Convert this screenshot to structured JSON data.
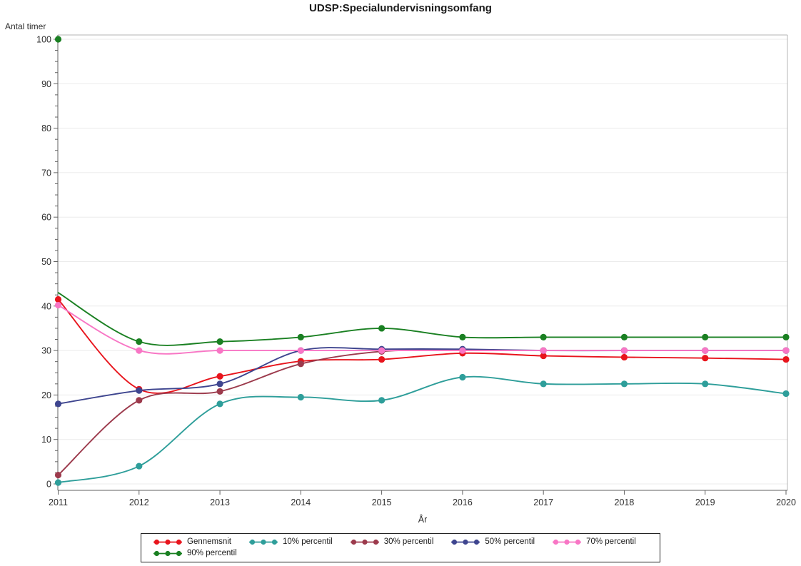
{
  "figure": {
    "title": "UDSP:Specialundervisningsomfang",
    "y_axis_title": "Antal timer",
    "x_axis_title": "År"
  },
  "chart_data": {
    "type": "line",
    "title": "UDSP:Specialundervisningsomfang",
    "xlabel": "År",
    "ylabel": "Antal timer",
    "x_categories": [
      "2011",
      "2012",
      "2013",
      "2014",
      "2015",
      "2016",
      "2017",
      "2018",
      "2019",
      "2020"
    ],
    "ylim": [
      0,
      100
    ],
    "yticks": [
      0,
      10,
      20,
      30,
      40,
      50,
      60,
      70,
      80,
      90,
      100
    ],
    "y_minor_tick_interval": 2.5,
    "grid": "horizontal",
    "legend_position": "bottom",
    "legend_rows": [
      5,
      1
    ],
    "series": [
      {
        "name": "Gennemsnit",
        "color": "#e8141c",
        "values": [
          41.5,
          21.3,
          24.2,
          27.6,
          28,
          29.4,
          28.8,
          28.5,
          28.3,
          28
        ]
      },
      {
        "name": "10% percentil",
        "color": "#2e9e9a",
        "values": [
          0.3,
          4,
          18,
          19.5,
          18.8,
          24,
          22.5,
          22.5,
          22.5,
          20.3
        ]
      },
      {
        "name": "30% percentil",
        "color": "#9c3a4c",
        "values": [
          2,
          18.8,
          20.8,
          27,
          29.8,
          30,
          30,
          30,
          30,
          30
        ]
      },
      {
        "name": "50% percentil",
        "color": "#3e458f",
        "values": [
          18,
          21,
          22.5,
          30,
          30.3,
          30.3,
          30,
          30,
          30,
          30
        ]
      },
      {
        "name": "70% percentil",
        "color": "#f876c5",
        "values": [
          40.2,
          30,
          30,
          30,
          30,
          30,
          30,
          30,
          30,
          30
        ]
      },
      {
        "name": "90% percentil",
        "color": "#1a8022",
        "values": [
          100,
          32,
          32,
          33,
          35,
          33,
          33,
          33,
          33,
          33
        ],
        "line_visible_start_value": 43
      }
    ],
    "style_colors": {
      "grid": "#ebebeb",
      "frame": "#b4b4b4",
      "axis": "#616161",
      "text": "#2e2e2e"
    }
  }
}
